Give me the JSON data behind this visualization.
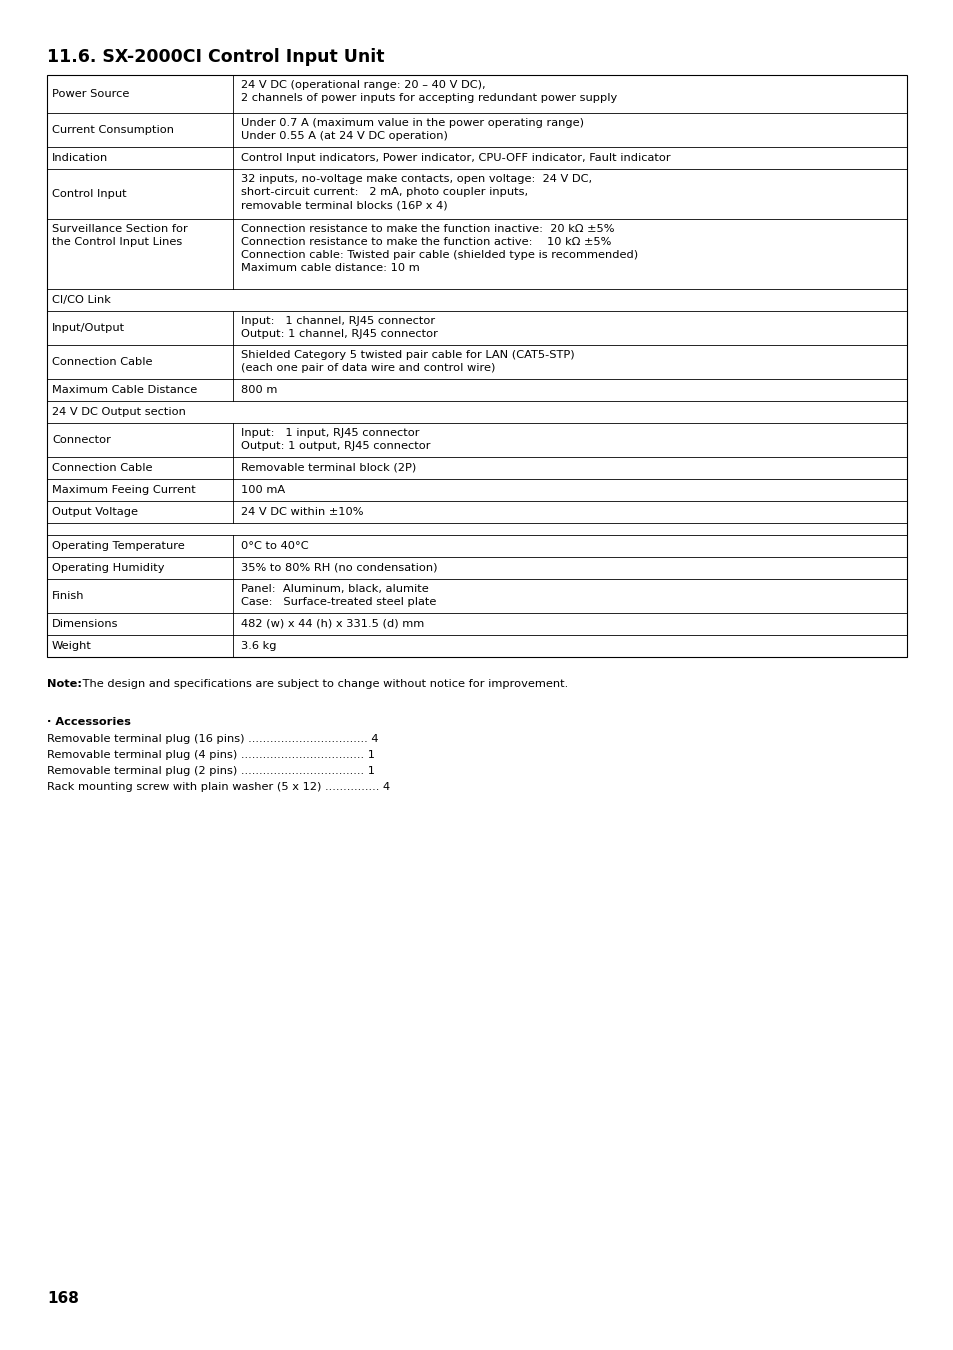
{
  "title": "11.6. SX-2000CI Control Input Unit",
  "page_number": "168",
  "background_color": "#ffffff",
  "table_border_color": "#000000",
  "text_color": "#000000",
  "rows": [
    {
      "label": "Power Source",
      "value": "24 V DC (operational range: 20 – 40 V DC),\n2 channels of power inputs for accepting redundant power supply",
      "section_header": false,
      "empty_row": false
    },
    {
      "label": "Current Consumption",
      "value": "Under 0.7 A (maximum value in the power operating range)\nUnder 0.55 A (at 24 V DC operation)",
      "section_header": false,
      "empty_row": false
    },
    {
      "label": "Indication",
      "value": "Control Input indicators, Power indicator, CPU-OFF indicator, Fault indicator",
      "section_header": false,
      "empty_row": false
    },
    {
      "label": "Control Input",
      "value": "32 inputs, no-voltage make contacts, open voltage:  24 V DC,\nshort-circuit current:   2 mA, photo coupler inputs,\nremovable terminal blocks (16P x 4)",
      "section_header": false,
      "empty_row": false
    },
    {
      "label": "Surveillance Section for\nthe Control Input Lines",
      "value": "Connection resistance to make the function inactive:  20 kΩ ±5%\nConnection resistance to make the function active:    10 kΩ ±5%\nConnection cable: Twisted pair cable (shielded type is recommended)\nMaximum cable distance: 10 m",
      "section_header": false,
      "empty_row": false
    },
    {
      "label": "CI/CO Link",
      "value": "",
      "section_header": true,
      "empty_row": false
    },
    {
      "label": "Input/Output",
      "value": "Input:   1 channel, RJ45 connector\nOutput: 1 channel, RJ45 connector",
      "section_header": false,
      "empty_row": false
    },
    {
      "label": "Connection Cable",
      "value": "Shielded Category 5 twisted pair cable for LAN (CAT5-STP)\n(each one pair of data wire and control wire)",
      "section_header": false,
      "empty_row": false
    },
    {
      "label": "Maximum Cable Distance",
      "value": "800 m",
      "section_header": false,
      "empty_row": false
    },
    {
      "label": "24 V DC Output section",
      "value": "",
      "section_header": true,
      "empty_row": false
    },
    {
      "label": "Connector",
      "value": "Input:   1 input, RJ45 connector\nOutput: 1 output, RJ45 connector",
      "section_header": false,
      "empty_row": false
    },
    {
      "label": "Connection Cable",
      "value": "Removable terminal block (2P)",
      "section_header": false,
      "empty_row": false
    },
    {
      "label": "Maximum Feeing Current",
      "value": "100 mA",
      "section_header": false,
      "empty_row": false
    },
    {
      "label": "Output Voltage",
      "value": "24 V DC within ±10%",
      "section_header": false,
      "empty_row": false
    },
    {
      "label": "",
      "value": "",
      "section_header": false,
      "empty_row": true
    },
    {
      "label": "Operating Temperature",
      "value": "0°C to 40°C",
      "section_header": false,
      "empty_row": false
    },
    {
      "label": "Operating Humidity",
      "value": "35% to 80% RH (no condensation)",
      "section_header": false,
      "empty_row": false
    },
    {
      "label": "Finish",
      "value": "Panel:  Aluminum, black, alumite\nCase:   Surface-treated steel plate",
      "section_header": false,
      "empty_row": false
    },
    {
      "label": "Dimensions",
      "value": "482 (w) x 44 (h) x 331.5 (d) mm",
      "section_header": false,
      "empty_row": false
    },
    {
      "label": "Weight",
      "value": "3.6 kg",
      "section_header": false,
      "empty_row": false
    }
  ],
  "note_bold": "Note:",
  "note_text": " The design and specifications are subject to change without notice for improvement.",
  "accessories_title": "· Accessories",
  "accessories": [
    {
      "label": "Removable terminal plug (16 pins) ",
      "dots": ".................................",
      "value": " 4"
    },
    {
      "label": "Removable terminal plug (4 pins) ",
      "dots": "..................................",
      "value": " 1"
    },
    {
      "label": "Removable terminal plug (2 pins) ",
      "dots": "..................................",
      "value": " 1"
    },
    {
      "label": "Rack mounting screw with plain washer (5 x 12) ",
      "dots": "...............",
      "value": " 4"
    }
  ]
}
